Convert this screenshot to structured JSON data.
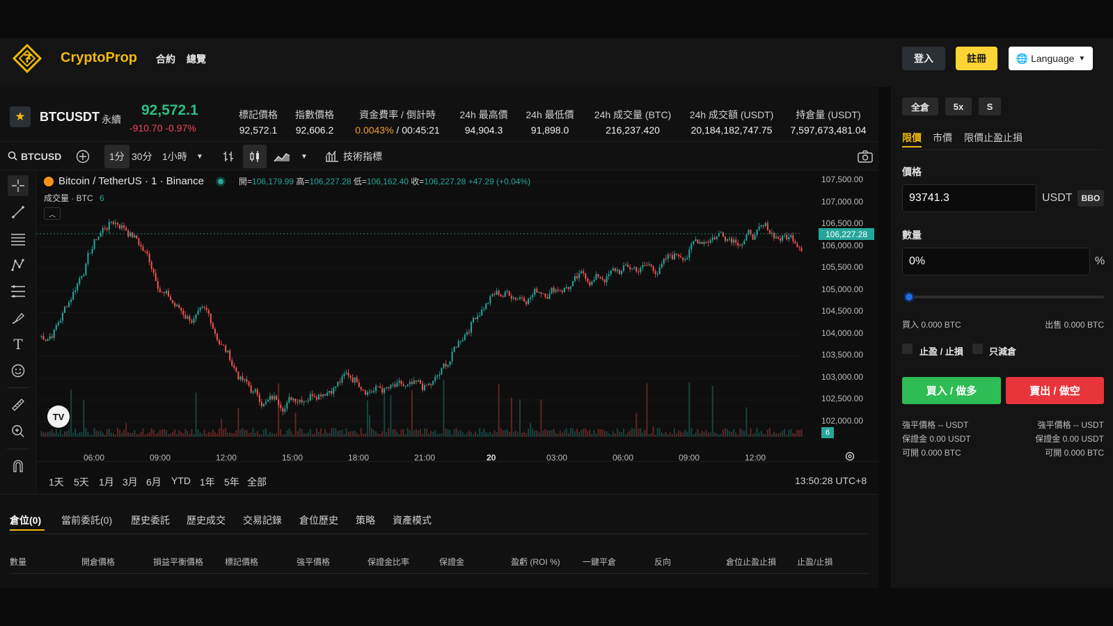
{
  "header": {
    "brand": "CryptoProp",
    "nav": [
      "合約",
      "總覽"
    ],
    "login": "登入",
    "register": "註冊",
    "language": "Language"
  },
  "ticker": {
    "symbol": "BTCUSDT",
    "contract_type": "永續",
    "last_price": "92,572.1",
    "change": "-910.70 -0.97%",
    "stats": [
      {
        "label": "標記價格",
        "value": "92,572.1"
      },
      {
        "label": "指數價格",
        "value": "92,606.2"
      },
      {
        "label": "資金費率 / 倒計時",
        "value_a": "0.0043%",
        "value_sep": " / ",
        "value_b": "00:45:21"
      },
      {
        "label": "24h 最高價",
        "value": "94,904.3"
      },
      {
        "label": "24h 最低價",
        "value": "91,898.0"
      },
      {
        "label": "24h 成交量 (BTC)",
        "value": "216,237.420"
      },
      {
        "label": "24h 成交額 (USDT)",
        "value": "20,184,182,747.75"
      },
      {
        "label": "持倉量 (USDT)",
        "value": "7,597,673,481.04"
      }
    ]
  },
  "toolbar": {
    "search_symbol": "BTCUSD",
    "interval_1": "1分",
    "interval_2": "30分",
    "interval_3": "1小時",
    "indicators": "技術指標"
  },
  "chart": {
    "title": "Bitcoin / TetherUS · 1 · Binance",
    "ohlc": {
      "o_label": "開=",
      "o": "106,179.99",
      "h_label": "高=",
      "h": "106,227.28",
      "l_label": "低=",
      "l": "106,162.40",
      "c_label": "收=",
      "c": "106,227.28",
      "chg": "+47.29 (+0.04%)"
    },
    "volume_label": "成交量 · BTC",
    "volume_value": "6",
    "volume_badge": "6",
    "current_price": "106,227.28",
    "price_axis": [
      "107,500.00",
      "107,000.00",
      "106,500.00",
      "106,000.00",
      "105,500.00",
      "105,000.00",
      "104,500.00",
      "104,000.00",
      "103,500.00",
      "103,000.00",
      "102,500.00",
      "102,000.00"
    ],
    "time_axis": [
      "06:00",
      "09:00",
      "12:00",
      "15:00",
      "18:00",
      "21:00",
      "20",
      "03:00",
      "06:00",
      "09:00",
      "12:00"
    ],
    "ranges": [
      "1天",
      "5天",
      "1月",
      "3月",
      "6月",
      "YTD",
      "1年",
      "5年",
      "全部"
    ],
    "clock": "13:50:28 UTC+8",
    "colors": {
      "up": "#26a69a",
      "down": "#ef5350"
    }
  },
  "chart_data": {
    "type": "line",
    "title": "Bitcoin / TetherUS · 1 · Binance",
    "x": [
      "06:00",
      "09:00",
      "12:00",
      "15:00",
      "18:00",
      "21:00",
      "20",
      "03:00",
      "06:00",
      "09:00",
      "12:00"
    ],
    "series": [
      {
        "values": [
          103900,
          106600,
          104400,
          102400,
          103000,
          102500,
          104900,
          105200,
          105500,
          106400,
          106200
        ]
      }
    ],
    "ylim": [
      101700,
      107700
    ]
  },
  "positions": {
    "tabs": [
      "倉位(0)",
      "當前委託(0)",
      "歷史委託",
      "歷史成交",
      "交易記錄",
      "倉位歷史",
      "策略",
      "資產模式"
    ],
    "columns": [
      "數量",
      "開倉價格",
      "損益平衡價格",
      "標記價格",
      "強平價格",
      "保證金比率",
      "保證金",
      "盈虧 (ROI %)",
      "一鍵平倉",
      "反向",
      "倉位止盈止損",
      "止盈/止損"
    ]
  },
  "order": {
    "margin_mode": "全倉",
    "leverage": "5x",
    "mode_s": "S",
    "types": [
      "限價",
      "市價",
      "限價止盈止損"
    ],
    "price_label": "價格",
    "price_value": "93741.3",
    "price_unit": "USDT",
    "bbo": "BBO",
    "qty_label": "數量",
    "qty_value": "0%",
    "qty_unit": "%",
    "slider_percent": 0,
    "buy_amount": "買入 0.000 BTC",
    "sell_amount": "出售 0.000 BTC",
    "tpsl": "止盈 / 止損",
    "reduce_only": "只減倉",
    "buy_button": "買入 / 做多",
    "sell_button": "賣出 / 做空",
    "buy_info": [
      "強平價格 -- USDT",
      "保證金 0.00 USDT",
      "可開 0.000 BTC"
    ],
    "sell_info": [
      "強平價格 -- USDT",
      "保證金 0.00 USDT",
      "可開 0.000 BTC"
    ]
  }
}
